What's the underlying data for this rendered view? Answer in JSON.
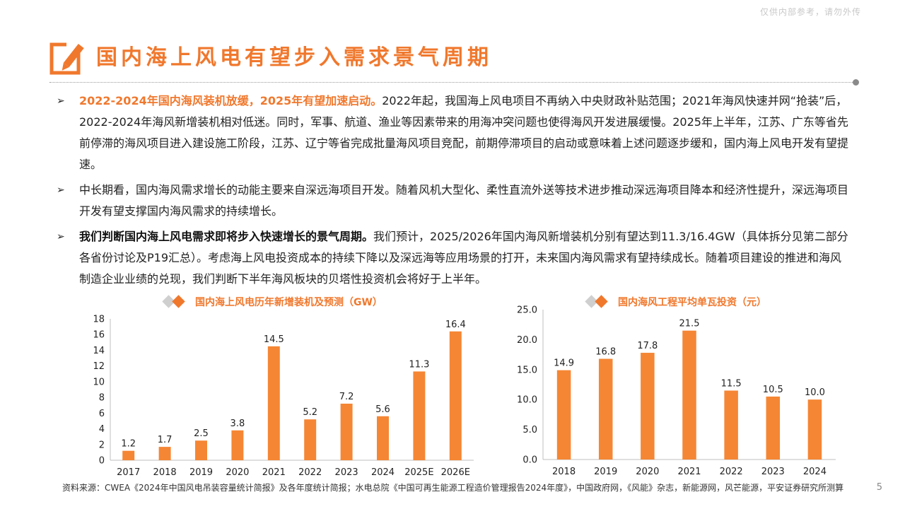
{
  "header": {
    "watermark": "仅供内部参考，请勿外传",
    "title": "国内海上风电有望步入需求景气周期",
    "title_icon": "pencil-edit-icon"
  },
  "bullets": [
    {
      "lead": "2022-2024年国内海风装机放缓，2025年有望加速启动。",
      "lead_style": "orange",
      "body": "2022年起，我国海上风电项目不再纳入中央财政补贴范围；2021年海风快速并网“抢装”后，2022-2024年海风新增装机相对低迷。同时，军事、航道、渔业等因素带来的用海冲突问题也使得海风开发进展缓慢。2025年上半年，江苏、广东等省先前停滞的海风项目进入建设施工阶段，江苏、辽宁等省完成批量海风项目竞配，前期停滞项目的启动或意味着上述问题逐步缓和，国内海上风电开发有望提速。"
    },
    {
      "lead": "",
      "lead_style": "none",
      "body": "中长期看，国内海风需求增长的动能主要来自深远海项目开发。随着风机大型化、柔性直流外送等技术进步推动深远海项目降本和经济性提升，深远海项目开发有望支撑国内海风需求的持续增长。"
    },
    {
      "lead": "我们判断国内海上风电需求即将步入快速增长的景气周期。",
      "lead_style": "bold",
      "body": "我们预计，2025/2026年国内海风新增装机分别有望达到11.3/16.4GW（具体拆分见第二部分各省份讨论及P19汇总）。考虑海上风电投资成本的持续下降以及深远海等应用场景的打开，未来国内海风需求有望持续成长。随着项目建设的推进和海风制造企业业绩的兑现，我们判断下半年海风板块的贝塔性投资机会将好于上半年。"
    }
  ],
  "chart_data": [
    {
      "type": "bar",
      "title": "国内海上风电历年新增装机及预测（GW）",
      "categories": [
        "2017",
        "2018",
        "2019",
        "2020",
        "2021",
        "2022",
        "2023",
        "2024",
        "2025E",
        "2026E"
      ],
      "values": [
        1.2,
        1.7,
        2.5,
        3.8,
        14.5,
        5.2,
        7.2,
        5.6,
        11.3,
        16.4
      ],
      "value_labels": [
        "1.2",
        "1.7",
        "2.5",
        "3.8",
        "14.5",
        "5.2",
        "7.2",
        "5.6",
        "11.3",
        "16.4"
      ],
      "ylim": [
        0,
        18
      ],
      "yticks": [
        "0",
        "2",
        "4",
        "6",
        "8",
        "10",
        "12",
        "14",
        "16",
        "18"
      ],
      "xlabel": "",
      "ylabel": "",
      "grid": false,
      "bar_color": "#f58634"
    },
    {
      "type": "bar",
      "title": "国内海风工程平均单瓦投资（元）",
      "categories": [
        "2018",
        "2019",
        "2020",
        "2021",
        "2022",
        "2023",
        "2024"
      ],
      "values": [
        14.9,
        16.8,
        17.8,
        21.5,
        11.5,
        10.5,
        10.0
      ],
      "value_labels": [
        "14.9",
        "16.8",
        "17.8",
        "21.5",
        "11.5",
        "10.5",
        "10.0"
      ],
      "ylim": [
        0,
        25
      ],
      "yticks": [
        "0.0",
        "5.0",
        "10.0",
        "15.0",
        "20.0",
        "25.0"
      ],
      "xlabel": "",
      "ylabel": "",
      "grid": false,
      "bar_color": "#f58634"
    }
  ],
  "footer": {
    "source": "资料来源：CWEA《2024年中国风电吊装容量统计简报》及各年度统计简报；水电总院《中国可再生能源工程造价管理报告2024年度》，中国政府网，《风能》杂志，新能源网，风芒能源，平安证券研究所测算",
    "page_number": "5"
  }
}
